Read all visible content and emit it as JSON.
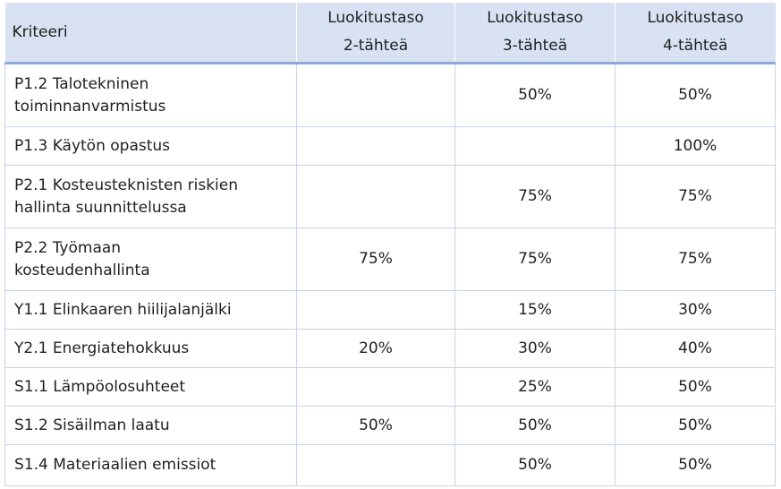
{
  "header": {
    "criterion": "Kriteeri",
    "levels": [
      [
        "Luokitustaso",
        "2-tähteä"
      ],
      [
        "Luokitustaso",
        "3-tähteä"
      ],
      [
        "Luokitustaso",
        "4-tähteä"
      ]
    ]
  },
  "rows": [
    {
      "criterion": [
        "P1.2 Talotekninen",
        "toiminnanvarmistus"
      ],
      "l2": "",
      "l3": "50%",
      "l4": "50%"
    },
    {
      "criterion": [
        "P1.3 Käytön opastus"
      ],
      "l2": "",
      "l3": "",
      "l4": "100%"
    },
    {
      "criterion": [
        "P2.1 Kosteusteknisten riskien",
        "hallinta suunnittelussa"
      ],
      "l2": "",
      "l3": "75%",
      "l4": "75%"
    },
    {
      "criterion": [
        "P2.2 Työmaan",
        "kosteudenhallinta"
      ],
      "l2": "75%",
      "l3": "75%",
      "l4": "75%"
    },
    {
      "criterion": [
        "Y1.1 Elinkaaren hiilijalanjälki"
      ],
      "l2": "",
      "l3": "15%",
      "l4": "30%"
    },
    {
      "criterion": [
        "Y2.1 Energiatehokkuus"
      ],
      "l2": "20%",
      "l3": "30%",
      "l4": "40%"
    },
    {
      "criterion": [
        "S1.1 Lämpöolosuhteet"
      ],
      "l2": "",
      "l3": "25%",
      "l4": "50%"
    },
    {
      "criterion": [
        "S1.2 Sisäilman laatu"
      ],
      "l2": "50%",
      "l3": "50%",
      "l4": "50%"
    },
    {
      "criterion": [
        "S1.4 Materiaalien emissiot"
      ],
      "l2": "",
      "l3": "50%",
      "l4": "50%"
    }
  ]
}
